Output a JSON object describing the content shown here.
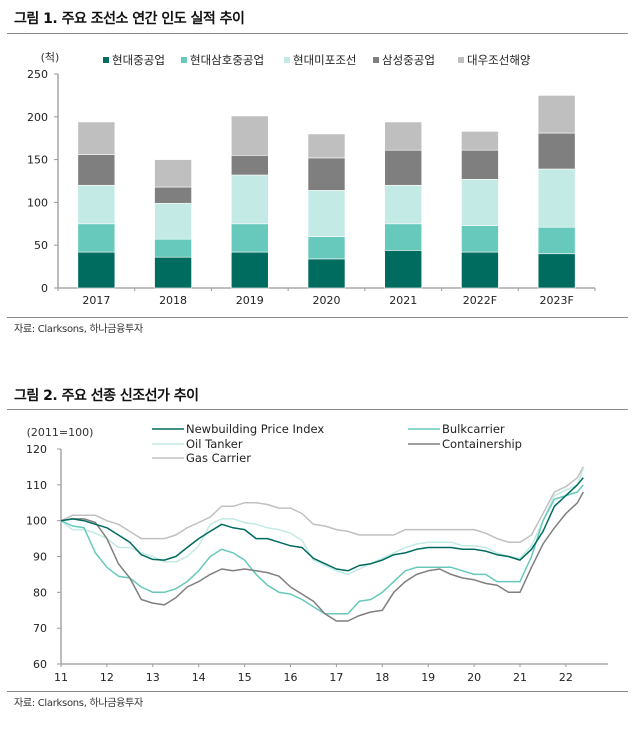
{
  "figure1": {
    "title": "그림 1. 주요 조선소 연간 인도 실적 추이",
    "source": "자료: Clarksons, 하나금융투자"
  },
  "figure2": {
    "title": "그림 2. 주요 선종 신조선가 추이",
    "source": "자료: Clarksons, 하나금융투자"
  },
  "chart_data": [
    {
      "type": "bar",
      "stacked": true,
      "title": "그림 1. 주요 조선소 연간 인도 실적 추이",
      "ylabel": "(척)",
      "xlabel": "",
      "ylim": [
        0,
        250
      ],
      "yticks": [
        0,
        50,
        100,
        150,
        200,
        250
      ],
      "grid": false,
      "legend_position": "top",
      "categories": [
        "2017",
        "2018",
        "2019",
        "2020",
        "2021",
        "2022F",
        "2023F"
      ],
      "series": [
        {
          "name": "현대중공업",
          "color": "#006b5f",
          "values": [
            42,
            36,
            42,
            34,
            44,
            42,
            40
          ]
        },
        {
          "name": "현대삼호중공업",
          "color": "#66c9bb",
          "values": [
            33,
            21,
            33,
            26,
            31,
            31,
            31
          ]
        },
        {
          "name": "현대미포조선",
          "color": "#c3eae5",
          "values": [
            45,
            42,
            57,
            54,
            45,
            54,
            68
          ]
        },
        {
          "name": "삼성중공업",
          "color": "#7f7f7f",
          "values": [
            36,
            19,
            23,
            38,
            41,
            34,
            42
          ]
        },
        {
          "name": "대우조선해양",
          "color": "#bfbfbf",
          "values": [
            38,
            32,
            46,
            28,
            33,
            22,
            44
          ]
        }
      ]
    },
    {
      "type": "line",
      "title": "그림 2. 주요 선종 신조선가 추이",
      "ylabel": "(2011=100)",
      "xlabel": "",
      "ylim": [
        60,
        120
      ],
      "yticks": [
        60,
        70,
        80,
        90,
        100,
        110,
        120
      ],
      "xlim": [
        11,
        23
      ],
      "xticks": [
        11,
        12,
        13,
        14,
        15,
        16,
        17,
        18,
        19,
        20,
        21,
        22
      ],
      "grid": false,
      "legend_position": "top",
      "x": [
        11.0,
        11.25,
        11.5,
        11.75,
        12.0,
        12.25,
        12.5,
        12.75,
        13.0,
        13.25,
        13.5,
        13.75,
        14.0,
        14.25,
        14.5,
        14.75,
        15.0,
        15.25,
        15.5,
        15.75,
        16.0,
        16.25,
        16.5,
        16.75,
        17.0,
        17.25,
        17.5,
        17.75,
        18.0,
        18.25,
        18.5,
        18.75,
        19.0,
        19.25,
        19.5,
        19.75,
        20.0,
        20.25,
        20.5,
        20.75,
        21.0,
        21.25,
        21.5,
        21.75,
        22.0,
        22.25,
        22.38
      ],
      "series": [
        {
          "name": "Newbuilding Price Index",
          "color": "#006b5f",
          "values": [
            100,
            100.5,
            100,
            99,
            98,
            96,
            94,
            90.5,
            89.2,
            89,
            90,
            92.5,
            95,
            97,
            99,
            98,
            97.5,
            95,
            95,
            94,
            93,
            92.5,
            89.5,
            88,
            86.5,
            86,
            87.5,
            88,
            89,
            90.5,
            91,
            92,
            92.5,
            92.5,
            92.5,
            92,
            92,
            91.5,
            90.5,
            90,
            89,
            92,
            97,
            104,
            107,
            110,
            112
          ]
        },
        {
          "name": "Bulkcarrier",
          "color": "#66c9bb",
          "values": [
            100,
            98.5,
            98,
            91,
            87,
            84.5,
            84,
            81.5,
            80,
            80,
            81,
            83,
            86,
            90,
            92,
            91,
            89,
            85,
            82,
            80,
            79.5,
            78,
            76,
            74,
            74,
            74,
            77.5,
            78,
            80,
            83,
            86,
            87,
            87,
            87,
            87,
            86,
            85,
            85,
            83,
            83,
            83,
            90,
            100,
            106,
            107,
            108,
            110
          ]
        },
        {
          "name": "Oil Tanker",
          "color": "#c3eae5",
          "values": [
            100,
            97.5,
            97.5,
            96.5,
            95,
            92.5,
            92.5,
            91,
            90,
            88.5,
            88.5,
            90,
            93,
            99,
            100.5,
            100.5,
            99.5,
            99,
            98,
            97.5,
            96.5,
            94.5,
            89,
            87.5,
            86,
            85,
            86.5,
            88,
            89.5,
            91,
            92.5,
            93.5,
            94,
            94,
            94,
            93,
            93,
            92.5,
            91,
            90,
            89.5,
            93,
            100,
            107,
            108.5,
            110,
            114.5
          ]
        },
        {
          "name": "Containership",
          "color": "#7f7f7f",
          "values": [
            100,
            100.5,
            100.5,
            99.5,
            95,
            88,
            84,
            78,
            77,
            76.5,
            78.5,
            81.5,
            83,
            85,
            86.5,
            86,
            86.5,
            86,
            85.5,
            84.5,
            81.5,
            79.5,
            77.5,
            74,
            72,
            72,
            73.5,
            74.5,
            75,
            80,
            83,
            85,
            86,
            86.5,
            85,
            84,
            83.5,
            82.5,
            82,
            80,
            80,
            87,
            93.5,
            98,
            102,
            105,
            108
          ]
        },
        {
          "name": "Gas Carrier",
          "color": "#c0c0c0",
          "values": [
            100,
            101.5,
            101.5,
            101.5,
            100,
            99,
            97,
            95,
            95,
            95,
            96,
            98,
            99.5,
            101,
            104,
            104,
            105,
            105,
            104.5,
            103.5,
            103.5,
            102,
            99,
            98.5,
            97.5,
            97,
            96,
            96,
            96,
            96,
            97.5,
            97.5,
            97.5,
            97.5,
            97.5,
            97.5,
            97.5,
            96.5,
            95,
            94,
            94,
            96,
            102,
            108,
            109.5,
            112,
            115
          ]
        }
      ]
    }
  ]
}
